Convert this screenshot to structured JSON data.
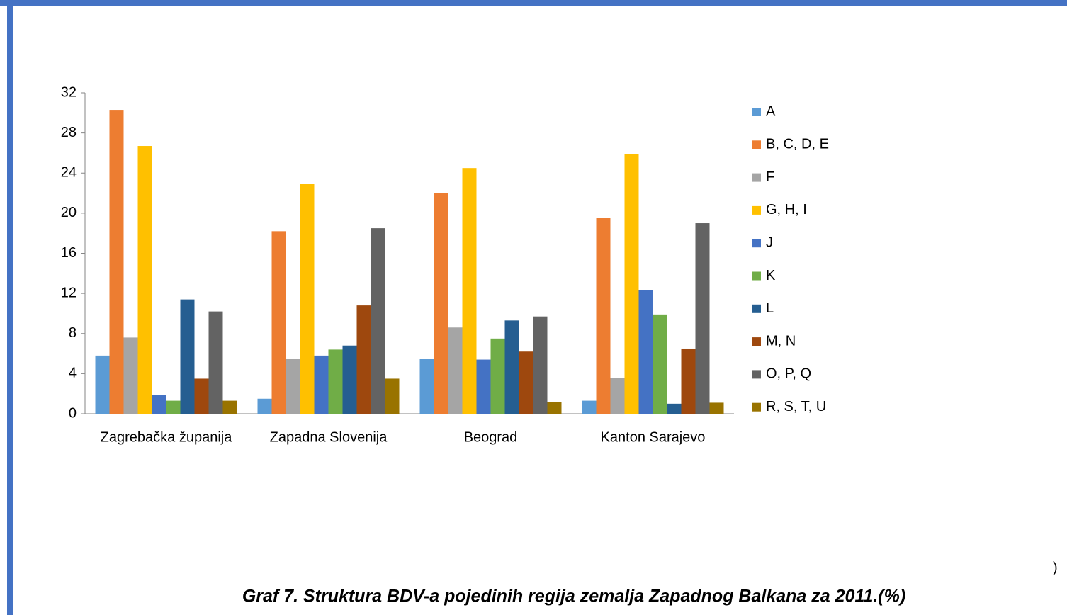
{
  "chart_data": {
    "type": "bar",
    "caption": "Graf 7. Struktura BDV-a pojedinih regija zemalja Zapadnog Balkana za 2011.(%)",
    "note": ")",
    "categories": [
      "Zagrebačka županija",
      "Zapadna Slovenija",
      "Beograd",
      "Kanton Sarajevo"
    ],
    "series": [
      {
        "name": "A",
        "color": "#5b9bd5",
        "values": [
          5.8,
          1.5,
          5.5,
          1.3
        ]
      },
      {
        "name": "B, C, D, E",
        "color": "#ed7d31",
        "values": [
          30.3,
          18.2,
          22.0,
          19.5
        ]
      },
      {
        "name": "F",
        "color": "#a5a5a5",
        "values": [
          7.6,
          5.5,
          8.6,
          3.6
        ]
      },
      {
        "name": "G, H, I",
        "color": "#ffc000",
        "values": [
          26.7,
          22.9,
          24.5,
          25.9
        ]
      },
      {
        "name": "J",
        "color": "#4472c4",
        "values": [
          1.9,
          5.8,
          5.4,
          12.3
        ]
      },
      {
        "name": "K",
        "color": "#70ad47",
        "values": [
          1.3,
          6.4,
          7.5,
          9.9
        ]
      },
      {
        "name": "L",
        "color": "#255e91",
        "values": [
          11.4,
          6.8,
          9.3,
          1.0
        ]
      },
      {
        "name": "M, N",
        "color": "#9e480e",
        "values": [
          3.5,
          10.8,
          6.2,
          6.5
        ]
      },
      {
        "name": "O, P, Q",
        "color": "#636363",
        "values": [
          10.2,
          18.5,
          9.7,
          19.0
        ]
      },
      {
        "name": "R, S, T, U",
        "color": "#997300",
        "values": [
          1.3,
          3.5,
          1.2,
          1.1
        ]
      }
    ],
    "ylim": [
      0,
      32
    ],
    "yticks": [
      0,
      4,
      8,
      12,
      16,
      20,
      24,
      28,
      32
    ],
    "grid": false,
    "legend": "right"
  }
}
